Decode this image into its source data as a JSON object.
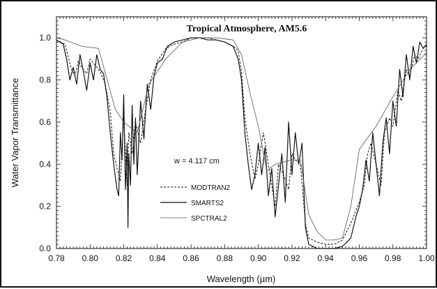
{
  "chart_data": {
    "type": "line",
    "title": "Tropical  Atmosphere,  AM5.6",
    "xlabel": "Wavelength (µm)",
    "ylabel": "Water Vapor Transmittance",
    "xlim": [
      0.78,
      1.0
    ],
    "ylim": [
      0.0,
      1.1
    ],
    "x_ticks": [
      "0.78",
      "0.80",
      "0.82",
      "0.84",
      "0.86",
      "0.88",
      "0.90",
      "0.92",
      "0.94",
      "0.96",
      "0.98",
      "1.00"
    ],
    "y_ticks": [
      "0.0",
      "0.2",
      "0.4",
      "0.6",
      "0.8",
      "1.0"
    ],
    "grid": false,
    "annotation": "w = 4.117 cm",
    "legend_position": "center-left",
    "series": [
      {
        "name": "MODTRAN2",
        "style": "dashed",
        "x": [
          0.78,
          0.785,
          0.789,
          0.791,
          0.793,
          0.795,
          0.798,
          0.8,
          0.803,
          0.806,
          0.809,
          0.812,
          0.814,
          0.816,
          0.818,
          0.82,
          0.822,
          0.823,
          0.825,
          0.827,
          0.83,
          0.833,
          0.836,
          0.84,
          0.845,
          0.85,
          0.855,
          0.86,
          0.865,
          0.87,
          0.875,
          0.88,
          0.885,
          0.888,
          0.89,
          0.892,
          0.895,
          0.898,
          0.9,
          0.903,
          0.905,
          0.908,
          0.91,
          0.912,
          0.915,
          0.918,
          0.92,
          0.922,
          0.925,
          0.928,
          0.93,
          0.935,
          0.94,
          0.945,
          0.95,
          0.955,
          0.96,
          0.963,
          0.965,
          0.967,
          0.97,
          0.973,
          0.975,
          0.978,
          0.98,
          0.983,
          0.985,
          0.988,
          0.99,
          0.993,
          0.995,
          0.998,
          1.0
        ],
        "y": [
          0.99,
          0.97,
          0.85,
          0.82,
          0.89,
          0.86,
          0.83,
          0.9,
          0.87,
          0.84,
          0.78,
          0.65,
          0.45,
          0.38,
          0.32,
          0.62,
          0.3,
          0.55,
          0.45,
          0.6,
          0.5,
          0.66,
          0.8,
          0.89,
          0.95,
          0.97,
          0.98,
          1.0,
          1.0,
          1.0,
          0.99,
          0.98,
          0.96,
          0.94,
          0.84,
          0.62,
          0.45,
          0.33,
          0.4,
          0.55,
          0.45,
          0.3,
          0.2,
          0.4,
          0.35,
          0.28,
          0.45,
          0.42,
          0.4,
          0.12,
          0.05,
          0.03,
          0.02,
          0.02,
          0.04,
          0.12,
          0.22,
          0.3,
          0.45,
          0.5,
          0.4,
          0.3,
          0.55,
          0.62,
          0.58,
          0.75,
          0.7,
          0.85,
          0.82,
          0.92,
          0.9,
          0.95,
          0.96
        ]
      },
      {
        "name": "SMARTS2",
        "style": "solid",
        "x": [
          0.78,
          0.784,
          0.786,
          0.788,
          0.79,
          0.792,
          0.794,
          0.796,
          0.798,
          0.8,
          0.802,
          0.804,
          0.806,
          0.808,
          0.81,
          0.812,
          0.814,
          0.816,
          0.817,
          0.818,
          0.819,
          0.82,
          0.821,
          0.822,
          0.8225,
          0.823,
          0.824,
          0.825,
          0.826,
          0.827,
          0.828,
          0.83,
          0.832,
          0.834,
          0.836,
          0.838,
          0.84,
          0.843,
          0.846,
          0.85,
          0.855,
          0.86,
          0.865,
          0.87,
          0.875,
          0.88,
          0.885,
          0.888,
          0.89,
          0.892,
          0.894,
          0.896,
          0.898,
          0.9,
          0.902,
          0.904,
          0.906,
          0.908,
          0.91,
          0.912,
          0.914,
          0.916,
          0.918,
          0.92,
          0.922,
          0.924,
          0.926,
          0.928,
          0.93,
          0.935,
          0.94,
          0.945,
          0.95,
          0.955,
          0.958,
          0.96,
          0.962,
          0.964,
          0.966,
          0.968,
          0.97,
          0.972,
          0.974,
          0.976,
          0.978,
          0.98,
          0.982,
          0.984,
          0.986,
          0.988,
          0.99,
          0.992,
          0.994,
          0.996,
          0.998,
          1.0
        ],
        "y": [
          0.99,
          0.97,
          0.9,
          0.8,
          0.86,
          0.78,
          0.92,
          0.84,
          0.75,
          0.88,
          0.8,
          0.92,
          0.85,
          0.83,
          0.72,
          0.55,
          0.4,
          0.28,
          0.25,
          0.55,
          0.42,
          0.73,
          0.28,
          0.5,
          0.1,
          0.45,
          0.3,
          0.68,
          0.4,
          0.62,
          0.35,
          0.7,
          0.52,
          0.78,
          0.66,
          0.82,
          0.88,
          0.9,
          0.96,
          0.98,
          0.99,
          1.0,
          1.0,
          0.99,
          0.99,
          0.98,
          0.96,
          0.9,
          0.8,
          0.55,
          0.4,
          0.28,
          0.35,
          0.5,
          0.35,
          0.48,
          0.25,
          0.38,
          0.15,
          0.3,
          0.45,
          0.22,
          0.6,
          0.35,
          0.55,
          0.4,
          0.5,
          0.1,
          0.02,
          0.0,
          0.0,
          0.0,
          0.01,
          0.05,
          0.15,
          0.2,
          0.28,
          0.42,
          0.32,
          0.55,
          0.4,
          0.25,
          0.5,
          0.62,
          0.45,
          0.7,
          0.58,
          0.85,
          0.72,
          0.92,
          0.8,
          0.96,
          0.88,
          0.98,
          0.95,
          0.97
        ]
      },
      {
        "name": "SPCTRAL2",
        "style": "solid-thin",
        "x": [
          0.78,
          0.785,
          0.795,
          0.805,
          0.815,
          0.82,
          0.828,
          0.835,
          0.845,
          0.855,
          0.865,
          0.875,
          0.885,
          0.89,
          0.895,
          0.9,
          0.905,
          0.91,
          0.92,
          0.925,
          0.93,
          0.935,
          0.94,
          0.945,
          0.95,
          0.955,
          0.96,
          0.97,
          0.98,
          0.99,
          1.0
        ],
        "y": [
          1.0,
          0.99,
          0.96,
          0.95,
          0.66,
          0.6,
          0.55,
          0.78,
          0.9,
          0.98,
          1.0,
          1.0,
          0.99,
          0.92,
          0.74,
          0.58,
          0.37,
          0.4,
          0.42,
          0.42,
          0.16,
          0.08,
          0.04,
          0.04,
          0.05,
          0.2,
          0.47,
          0.58,
          0.72,
          0.85,
          0.93
        ]
      }
    ]
  }
}
